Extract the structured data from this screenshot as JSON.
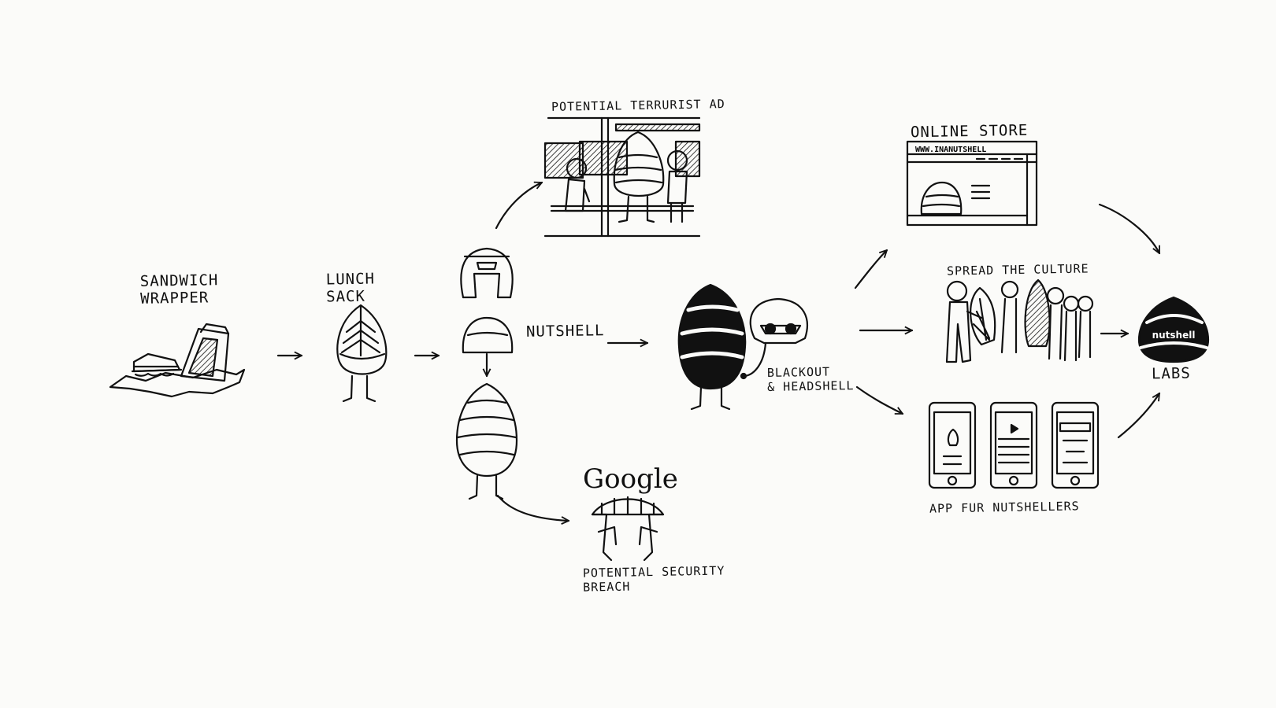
{
  "labels": {
    "sandwich_wrapper": [
      "SANDWICH",
      "WRAPPER"
    ],
    "lunch_sack": [
      "LUNCH",
      "SACK"
    ],
    "nutshell": "NUTSHELL",
    "potential_terrorist_ad": "POTENTIAL TERRURIST AD",
    "google": "Google",
    "potential_security_breach": [
      "POTENTIAL SECURITY",
      "BREACH"
    ],
    "blackout_headshell": [
      "BLACKOUT",
      "& HEADSHELL"
    ],
    "online_store": "ONLINE STORE",
    "store_url": "WWW.INANUTSHELL",
    "spread_the_culture": "SPREAD THE CULTURE",
    "app_for_nutshellers": "APP FUR NUTSHELLERS",
    "labs": "LABS",
    "logo_text": "nutshell"
  }
}
